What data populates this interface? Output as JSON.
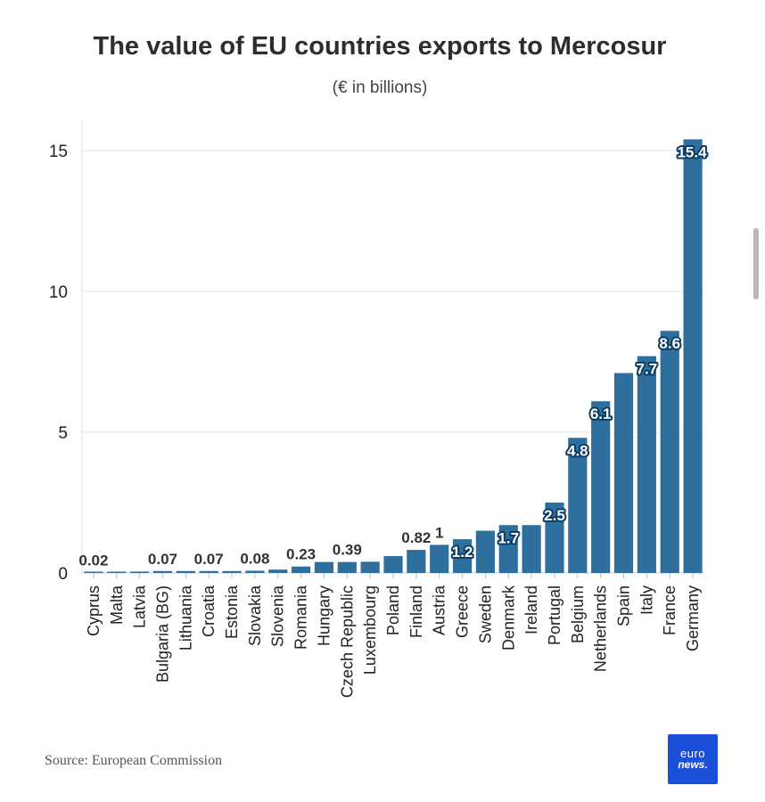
{
  "chart_data": {
    "type": "bar",
    "title": "The value of EU countries exports to Mercosur",
    "subtitle": "(€ in billions)",
    "xlabel": "",
    "ylabel": "",
    "ylim": [
      0,
      15.4
    ],
    "yticks": [
      0,
      5,
      10,
      15
    ],
    "grid": true,
    "bar_color": "#2e6f9e",
    "categories": [
      "Cyprus",
      "Malta",
      "Latvia",
      "Bulgaria (BG)",
      "Lithuania",
      "Croatia",
      "Estonia",
      "Slovakia",
      "Slovenia",
      "Romania",
      "Hungary",
      "Czech Republic",
      "Luxembourg",
      "Poland",
      "Finland",
      "Austria",
      "Greece",
      "Sweden",
      "Denmark",
      "Ireland",
      "Portugal",
      "Belgium",
      "Netherlands",
      "Spain",
      "Italy",
      "France",
      "Germany"
    ],
    "values": [
      0.02,
      0.03,
      0.05,
      0.07,
      0.07,
      0.07,
      0.07,
      0.08,
      0.12,
      0.23,
      0.39,
      0.39,
      0.4,
      0.6,
      0.82,
      1.0,
      1.2,
      1.5,
      1.7,
      1.7,
      2.5,
      4.8,
      6.1,
      7.1,
      7.7,
      8.6,
      15.4
    ],
    "data_labels": [
      {
        "index": 0,
        "text": "0.02",
        "style": "plain"
      },
      {
        "index": 3,
        "text": "0.07",
        "style": "plain"
      },
      {
        "index": 5,
        "text": "0.07",
        "style": "plain"
      },
      {
        "index": 7,
        "text": "0.08",
        "style": "plain"
      },
      {
        "index": 9,
        "text": "0.23",
        "style": "plain"
      },
      {
        "index": 11,
        "text": "0.39",
        "style": "plain"
      },
      {
        "index": 14,
        "text": "0.82",
        "style": "plain"
      },
      {
        "index": 15,
        "text": "1",
        "style": "plain"
      },
      {
        "index": 16,
        "text": "1.2",
        "style": "inside"
      },
      {
        "index": 18,
        "text": "1.7",
        "style": "inside"
      },
      {
        "index": 20,
        "text": "2.5",
        "style": "inside"
      },
      {
        "index": 21,
        "text": "4.8",
        "style": "inside"
      },
      {
        "index": 22,
        "text": "6.1",
        "style": "inside"
      },
      {
        "index": 24,
        "text": "7.7",
        "style": "inside"
      },
      {
        "index": 25,
        "text": "8.6",
        "style": "inside"
      },
      {
        "index": 26,
        "text": "15.4",
        "style": "inside"
      }
    ]
  },
  "footer": {
    "source": "Source: European Commission",
    "logo_top": "euro",
    "logo_bottom": "news."
  }
}
